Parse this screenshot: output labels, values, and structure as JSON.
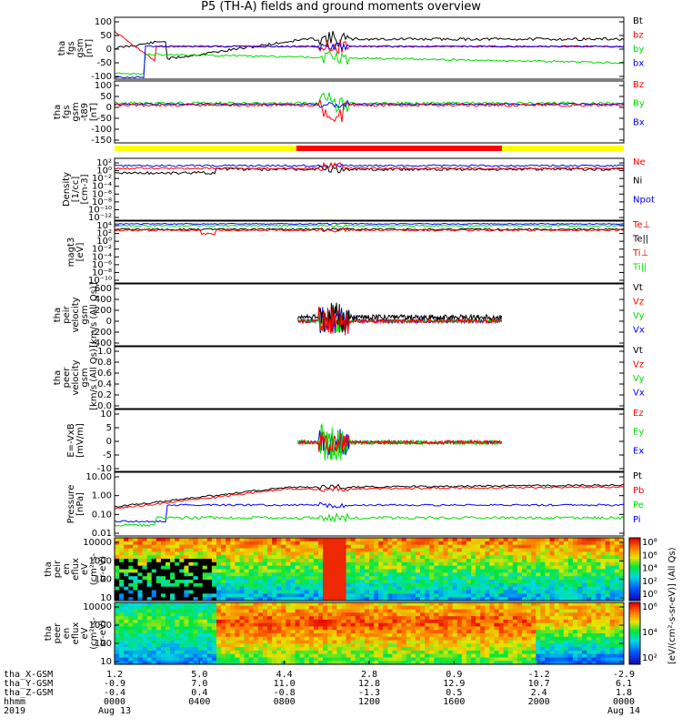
{
  "title": "P5 (TH-A) fields and ground moments overview",
  "colors": {
    "black": "#000000",
    "red": "#ff0000",
    "green": "#00dd00",
    "blue": "#0000ff",
    "yellow": "#ffff00"
  },
  "chart_data": [
    {
      "type": "line",
      "ylabel": [
        "tha",
        "fgs",
        "gsm",
        "[nT]"
      ],
      "yticks": [
        "100",
        "50",
        "0",
        "-50",
        "-100"
      ],
      "ylim": [
        -100,
        100
      ],
      "series": [
        {
          "name": "Bt",
          "color": "black"
        },
        {
          "name": "bz",
          "color": "red"
        },
        {
          "name": "by",
          "color": "green"
        },
        {
          "name": "bx",
          "color": "blue"
        }
      ]
    },
    {
      "type": "line",
      "ylabel": [
        "tha",
        "fgs",
        "gsm",
        "-t89",
        "[nT]"
      ],
      "yticks": [
        "100",
        "50",
        "0",
        "-50",
        "-100",
        "-150"
      ],
      "ylim": [
        -180,
        100
      ],
      "series": [
        {
          "name": "Bz",
          "color": "red"
        },
        {
          "name": "By",
          "color": "green"
        },
        {
          "name": "Bx",
          "color": "blue"
        }
      ]
    },
    {
      "type": "line",
      "ylabel": [
        "Density",
        "[1/cc]",
        "[cm-3]"
      ],
      "yticks": [
        "10²",
        "10⁰",
        "10⁻²",
        "10⁻⁴",
        "10⁻⁶",
        "10⁻⁸",
        "10⁻¹⁰",
        "10⁻¹²"
      ],
      "log": true,
      "series": [
        {
          "name": "Ne",
          "color": "red"
        },
        {
          "name": "Ni",
          "color": "black"
        },
        {
          "name": "Npot",
          "color": "blue"
        }
      ]
    },
    {
      "type": "line",
      "ylabel": [
        "magt3",
        "[eV]"
      ],
      "yticks": [
        "10⁴",
        "10²",
        "10⁰",
        "10⁻²",
        "10⁻⁴",
        "10⁻⁶",
        "10⁻⁸",
        "10⁻¹⁰"
      ],
      "log": true,
      "series": [
        {
          "name": "Te⊥",
          "color": "red"
        },
        {
          "name": "Te||",
          "color": "black"
        },
        {
          "name": "Ti⊥",
          "color": "red"
        },
        {
          "name": "Ti||",
          "color": "green"
        }
      ]
    },
    {
      "type": "line",
      "ylabel": [
        "tha",
        "peir",
        "velocity",
        "gsm",
        "[km/s (All Qs)]"
      ],
      "yticks": [
        "600",
        "400",
        "200",
        "0",
        "-200",
        "-400"
      ],
      "ylim": [
        -400,
        600
      ],
      "series": [
        {
          "name": "Vt",
          "color": "black"
        },
        {
          "name": "Vz",
          "color": "red"
        },
        {
          "name": "Vy",
          "color": "green"
        },
        {
          "name": "Vx",
          "color": "blue"
        }
      ]
    },
    {
      "type": "line",
      "ylabel": [
        "tha",
        "peer",
        "velocity",
        "gsm",
        "[km/s (All Qs)]"
      ],
      "yticks": [
        "1.0",
        "0.8",
        "0.6",
        "0.4",
        "0.2",
        "0.0"
      ],
      "ylim": [
        0,
        1
      ],
      "series": [
        {
          "name": "Vt",
          "color": "black"
        },
        {
          "name": "Vz",
          "color": "red"
        },
        {
          "name": "Vy",
          "color": "green"
        },
        {
          "name": "Vx",
          "color": "blue"
        }
      ]
    },
    {
      "type": "line",
      "ylabel": [
        "E=-VxB",
        "[mV/m]"
      ],
      "yticks": [
        "10",
        "5",
        "0",
        "-5",
        "-10"
      ],
      "ylim": [
        -12,
        10
      ],
      "series": [
        {
          "name": "Ez",
          "color": "red"
        },
        {
          "name": "Ey",
          "color": "green"
        },
        {
          "name": "Ex",
          "color": "blue"
        }
      ]
    },
    {
      "type": "line",
      "ylabel": [
        "Pressure",
        "[nPa]"
      ],
      "yticks": [
        "10.00",
        "1.00",
        "0.10",
        "0.01"
      ],
      "log": true,
      "series": [
        {
          "name": "Pt",
          "color": "black"
        },
        {
          "name": "Pb",
          "color": "red"
        },
        {
          "name": "Pe",
          "color": "green"
        },
        {
          "name": "Pi",
          "color": "blue"
        }
      ]
    },
    {
      "type": "heatmap",
      "ylabel": [
        "tha",
        "peir",
        "en",
        "eflux",
        "eV",
        "(cm²-s-",
        "sr-eV)"
      ],
      "yticks": [
        "10000",
        "1000",
        "100",
        "10"
      ],
      "colorbar": [
        "10⁸",
        "10⁶",
        "10⁴",
        "10²",
        "10⁰"
      ]
    },
    {
      "type": "heatmap",
      "ylabel": [
        "tha",
        "peer",
        "en",
        "eflux",
        "eV",
        "(cm²-s-",
        "sr-eV)"
      ],
      "yticks": [
        "10000",
        "1000",
        "100",
        "10"
      ],
      "colorbar": [
        "10⁶",
        "10⁴",
        "10²"
      ]
    }
  ],
  "colorbar_label": "[eV/(cm²-s-sr-eV)] (All Qs)",
  "xaxis": {
    "rows": [
      {
        "label": "tha_X-GSM",
        "values": [
          "1.2",
          "5.0",
          "4.4",
          "2.8",
          "0.9",
          "-1.2",
          "-2.9"
        ]
      },
      {
        "label": "tha_Y-GSM",
        "values": [
          "-0.9",
          "7.0",
          "11.0",
          "12.8",
          "12.9",
          "10.7",
          "6.1"
        ]
      },
      {
        "label": "tha_Z-GSM",
        "values": [
          "-0.4",
          "0.4",
          "-0.8",
          "-1.3",
          "0.5",
          "2.4",
          "1.8"
        ]
      },
      {
        "label": "hhmm",
        "values": [
          "0000",
          "0400",
          "0800",
          "1200",
          "1600",
          "2000",
          "0000"
        ]
      },
      {
        "label": "2019",
        "values": [
          "Aug 13",
          "",
          "",
          "",
          "",
          "",
          "Aug 14"
        ]
      }
    ]
  }
}
